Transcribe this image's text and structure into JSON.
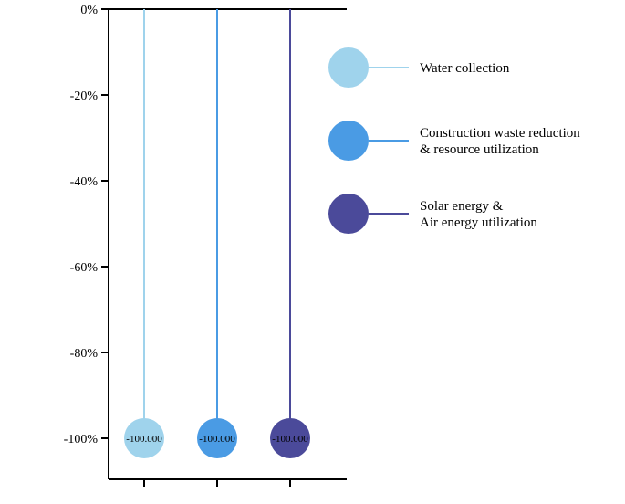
{
  "chart_data": {
    "type": "lollipop",
    "series": [
      {
        "name": "Water collection",
        "value": -100,
        "label": "-100.000",
        "color": "#9fd3ec",
        "legend_lines": [
          "Water collection"
        ]
      },
      {
        "name": "Construction waste reduction & resource utilization",
        "value": -100,
        "label": "-100.000",
        "color": "#4a9be4",
        "legend_lines": [
          "Construction waste reduction",
          "& resource utilization"
        ]
      },
      {
        "name": "Solar energy & Air energy utilization",
        "value": -100,
        "label": "-100.000",
        "color": "#4b4a9a",
        "legend_lines": [
          "Solar energy &",
          "Air energy utilization"
        ]
      }
    ],
    "y_ticks": [
      {
        "value": 0,
        "label": "0%"
      },
      {
        "value": -20,
        "label": "-20%"
      },
      {
        "value": -40,
        "label": "-40%"
      },
      {
        "value": -60,
        "label": "-60%"
      },
      {
        "value": -80,
        "label": "-80%"
      },
      {
        "value": -100,
        "label": "-100%"
      }
    ],
    "ylim": [
      -110,
      0
    ],
    "grid": false,
    "legend_position": "right"
  }
}
